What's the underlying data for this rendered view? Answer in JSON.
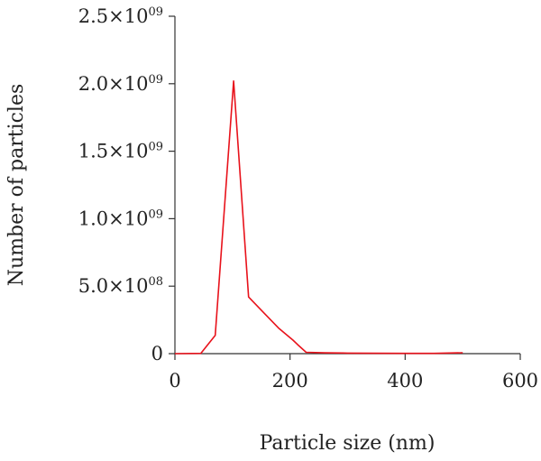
{
  "chart_data": {
    "type": "line",
    "title": "",
    "xlabel": "Particle size (nm)",
    "ylabel": "Number of particles",
    "xlim": [
      0,
      600
    ],
    "ylim": [
      0,
      2500000000
    ],
    "x_ticks": [
      {
        "value": 0,
        "label": "0"
      },
      {
        "value": 200,
        "label": "200"
      },
      {
        "value": 400,
        "label": "400"
      },
      {
        "value": 600,
        "label": "600"
      }
    ],
    "y_ticks": [
      {
        "value": 0,
        "base": "0",
        "exp": ""
      },
      {
        "value": 500000000,
        "base": "5.0×10",
        "exp": "08"
      },
      {
        "value": 1000000000,
        "base": "1.0×10",
        "exp": "09"
      },
      {
        "value": 1500000000,
        "base": "1.5×10",
        "exp": "09"
      },
      {
        "value": 2000000000,
        "base": "2.0×10",
        "exp": "09"
      },
      {
        "value": 2500000000,
        "base": "2.5×10",
        "exp": "09"
      }
    ],
    "grid": false,
    "legend": "none",
    "series": [
      {
        "color": "#e8121b",
        "x": [
          0,
          45,
          70,
          102,
          128,
          155,
          180,
          205,
          215,
          228,
          260,
          300,
          350,
          400,
          450,
          500
        ],
        "y": [
          0,
          2000000,
          135000000,
          2020000000,
          420000000,
          300000000,
          190000000,
          100000000,
          60000000,
          10000000,
          6000000,
          4000000,
          3000000,
          2000000,
          2000000,
          7000000
        ]
      }
    ]
  }
}
